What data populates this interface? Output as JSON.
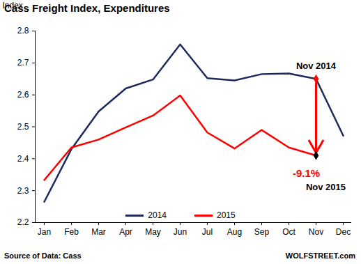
{
  "chart_data": {
    "type": "line",
    "title": "Cass Freight Index, Expenditures",
    "y_label": "Index",
    "source": "Source of Data: Cass",
    "credit": "WOLFSTREET.com",
    "categories": [
      "Jan",
      "Feb",
      "Mar",
      "Apr",
      "May",
      "Jun",
      "Jul",
      "Aug",
      "Sep",
      "Oct",
      "Nov",
      "Dec"
    ],
    "series": [
      {
        "name": "2014",
        "color": "#1f2a5c",
        "values": [
          2.265,
          2.43,
          2.548,
          2.62,
          2.648,
          2.758,
          2.652,
          2.645,
          2.665,
          2.667,
          2.65,
          2.472
        ]
      },
      {
        "name": "2015",
        "color": "#ff0000",
        "values": [
          2.333,
          2.435,
          2.46,
          2.498,
          2.535,
          2.598,
          2.482,
          2.432,
          2.49,
          2.435,
          2.41,
          null
        ]
      }
    ],
    "ylim": [
      2.2,
      2.8
    ],
    "yticks": [
      2.2,
      2.3,
      2.4,
      2.5,
      2.6,
      2.7,
      2.8
    ],
    "grid": false,
    "legend": "bottom",
    "annotations": [
      {
        "text": "Nov 2014",
        "x": "Nov",
        "series": "2014"
      },
      {
        "text": "-9.1%",
        "x": "Nov",
        "series": "2015"
      },
      {
        "text": "Nov 2015",
        "x": "Nov",
        "series": "2015"
      }
    ]
  }
}
